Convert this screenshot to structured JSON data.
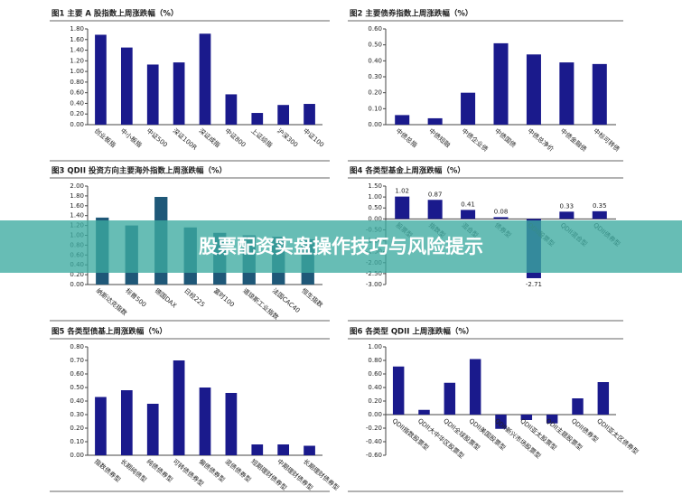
{
  "chart_data": [
    {
      "type": "bar",
      "title": "图1  主要 A 股指数上周涨跌幅（%）",
      "color": "#1a1a8c",
      "categories": [
        "创业板指",
        "中小板指",
        "中证500",
        "深证100R",
        "深证成指",
        "中证800",
        "上证综指",
        "沪深300",
        "中证100"
      ],
      "values": [
        1.69,
        1.45,
        1.13,
        1.17,
        1.71,
        0.57,
        0.22,
        0.37,
        0.39
      ],
      "ylim": [
        0,
        1.8
      ],
      "yticks": [
        {
          "value": 0,
          "label": "0.00"
        },
        {
          "value": 0.2,
          "label": "0.20"
        },
        {
          "value": 0.4,
          "label": "0.40"
        },
        {
          "value": 0.6,
          "label": "0.60"
        },
        {
          "value": 0.8,
          "label": "0.80"
        },
        {
          "value": 1,
          "label": "1.00"
        },
        {
          "value": 1.2,
          "label": "1.20"
        },
        {
          "value": 1.4,
          "label": "1.40"
        },
        {
          "value": 1.6,
          "label": "1.60"
        },
        {
          "value": 1.8,
          "label": "1.80"
        }
      ]
    },
    {
      "type": "bar",
      "title": "图2  主要债券指数上周涨跌幅（%）",
      "color": "#1a1a8c",
      "categories": [
        "中债总指",
        "中债短融",
        "中债企业债",
        "中债国债",
        "中债总净价",
        "中债金融债",
        "中标可转债"
      ],
      "values": [
        0.06,
        0.04,
        0.2,
        0.51,
        0.44,
        0.39,
        0.38
      ],
      "ylim": [
        0,
        0.6
      ],
      "yticks": [
        {
          "value": 0,
          "label": "0.00"
        },
        {
          "value": 0.1,
          "label": "0.10"
        },
        {
          "value": 0.2,
          "label": "0.20"
        },
        {
          "value": 0.3,
          "label": "0.30"
        },
        {
          "value": 0.4,
          "label": "0.40"
        },
        {
          "value": 0.5,
          "label": "0.50"
        },
        {
          "value": 0.6,
          "label": "0.60"
        }
      ]
    },
    {
      "type": "bar",
      "title": "图3 QDII 投资方向主要海外指数上周涨跌幅（%）",
      "color": "#1f5878",
      "categories": [
        "纳斯达克指数",
        "标普500",
        "德国DAX",
        "日经225",
        "富时100",
        "道琼斯工业指数",
        "法国CAC40",
        "恒生指数"
      ],
      "values": [
        1.36,
        1.2,
        1.78,
        1.16,
        1.05,
        1.0,
        0.97,
        0.92
      ],
      "ylim": [
        0,
        2
      ],
      "yticks": [
        {
          "value": 0,
          "label": "0.00"
        },
        {
          "value": 0.2,
          "label": "0.20"
        },
        {
          "value": 0.4,
          "label": "0.40"
        },
        {
          "value": 0.6,
          "label": "0.60"
        },
        {
          "value": 0.8,
          "label": "0.80"
        },
        {
          "value": 1,
          "label": "1.00"
        },
        {
          "value": 1.2,
          "label": "1.20"
        },
        {
          "value": 1.4,
          "label": "1.40"
        },
        {
          "value": 1.6,
          "label": "1.60"
        },
        {
          "value": 1.8,
          "label": "1.80"
        },
        {
          "value": 2,
          "label": "2.00"
        }
      ]
    },
    {
      "type": "bar",
      "title": "图4  各类型基金上周涨跌幅（%）",
      "color": "#1a1a8c",
      "data_labels": true,
      "categories": [
        "股票型",
        "指数型",
        "混合型",
        "债券型",
        "QDII股票型",
        "QDII混合型",
        "QDII债券型"
      ],
      "values": [
        1.02,
        0.87,
        0.41,
        0.08,
        -2.71,
        0.33,
        0.35
      ],
      "ylim": [
        -3,
        1.5
      ],
      "yticks": [
        {
          "value": -3,
          "label": "-3.00"
        },
        {
          "value": -2.5,
          "label": "-2.50"
        },
        {
          "value": -2,
          "label": "-2.00"
        },
        {
          "value": -1.5,
          "label": "-1.50"
        },
        {
          "value": -1,
          "label": "-1.00"
        },
        {
          "value": -0.5,
          "label": "-0.50"
        },
        {
          "value": 0,
          "label": "0.00"
        },
        {
          "value": 0.5,
          "label": "0.50"
        },
        {
          "value": 1,
          "label": "1.00"
        },
        {
          "value": 1.5,
          "label": "1.50"
        }
      ]
    },
    {
      "type": "bar",
      "title": "图5  各类型债基上周涨跌幅（%）",
      "color": "#1a1a8c",
      "categories": [
        "指数债券型",
        "长期纯债型",
        "纯债债券型",
        "可转债债券型",
        "偏债债券型",
        "混债债券型",
        "短期理财债券型",
        "中期理财债券型",
        "长期理财债券型"
      ],
      "values": [
        0.43,
        0.48,
        0.38,
        0.7,
        0.5,
        0.46,
        0.08,
        0.08,
        0.07
      ],
      "ylim": [
        0,
        0.8
      ],
      "yticks": [
        {
          "value": 0,
          "label": "0.00"
        },
        {
          "value": 0.1,
          "label": "0.10"
        },
        {
          "value": 0.2,
          "label": "0.20"
        },
        {
          "value": 0.3,
          "label": "0.30"
        },
        {
          "value": 0.4,
          "label": "0.40"
        },
        {
          "value": 0.5,
          "label": "0.50"
        },
        {
          "value": 0.6,
          "label": "0.60"
        },
        {
          "value": 0.7,
          "label": "0.70"
        },
        {
          "value": 0.8,
          "label": "0.80"
        }
      ]
    },
    {
      "type": "bar",
      "title": "图6  各类型 QDII 上周涨跌幅（%）",
      "color": "#1a1a8c",
      "categories": [
        "QDII指数股票型",
        "QDII大中华区股票型",
        "QDII全球股票型",
        "QDII美国股票型",
        "QDII新兴市场股票型",
        "QDII亚太股票型",
        "QDII主题股票型",
        "QDII债券型",
        "QDII亚太区债券型"
      ],
      "values": [
        0.71,
        0.07,
        0.47,
        0.82,
        -0.21,
        -0.08,
        -0.13,
        0.24,
        0.48
      ],
      "ylim": [
        -0.6,
        1
      ],
      "yticks": [
        {
          "value": -0.6,
          "label": "-0.60"
        },
        {
          "value": -0.4,
          "label": "-0.40"
        },
        {
          "value": -0.2,
          "label": "-0.20"
        },
        {
          "value": 0,
          "label": "0.00"
        },
        {
          "value": 0.2,
          "label": "0.20"
        },
        {
          "value": 0.4,
          "label": "0.40"
        },
        {
          "value": 0.6,
          "label": "0.60"
        },
        {
          "value": 0.8,
          "label": "0.80"
        },
        {
          "value": 1,
          "label": "1.00"
        }
      ]
    }
  ],
  "banner": {
    "text": "股票配资实盘操作技巧与风险提示"
  }
}
